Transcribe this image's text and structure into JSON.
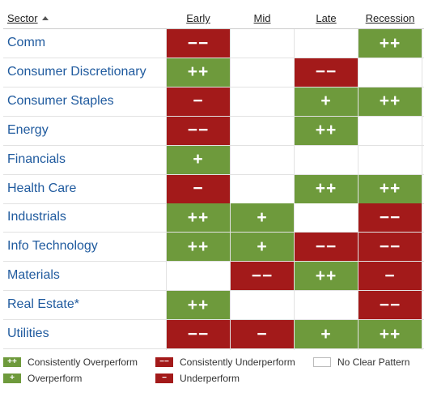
{
  "chart_data": {
    "type": "table",
    "columns": {
      "sector": "Sector",
      "phases": [
        "Early",
        "Mid",
        "Late",
        "Recession"
      ]
    },
    "rows": [
      {
        "sector": "Comm",
        "cells": [
          {
            "code": "mm",
            "symbol": "−−"
          },
          {
            "code": "n",
            "symbol": ""
          },
          {
            "code": "n",
            "symbol": ""
          },
          {
            "code": "pp",
            "symbol": "++"
          }
        ]
      },
      {
        "sector": "Consumer Discretionary",
        "cells": [
          {
            "code": "pp",
            "symbol": "++"
          },
          {
            "code": "n",
            "symbol": ""
          },
          {
            "code": "mm",
            "symbol": "−−"
          },
          {
            "code": "n",
            "symbol": ""
          }
        ]
      },
      {
        "sector": "Consumer Staples",
        "cells": [
          {
            "code": "m",
            "symbol": "−"
          },
          {
            "code": "n",
            "symbol": ""
          },
          {
            "code": "p",
            "symbol": "+"
          },
          {
            "code": "pp",
            "symbol": "++"
          }
        ]
      },
      {
        "sector": "Energy",
        "cells": [
          {
            "code": "mm",
            "symbol": "−−"
          },
          {
            "code": "n",
            "symbol": ""
          },
          {
            "code": "pp",
            "symbol": "++"
          },
          {
            "code": "n",
            "symbol": ""
          }
        ]
      },
      {
        "sector": "Financials",
        "cells": [
          {
            "code": "p",
            "symbol": "+"
          },
          {
            "code": "n",
            "symbol": ""
          },
          {
            "code": "n",
            "symbol": ""
          },
          {
            "code": "n",
            "symbol": ""
          }
        ]
      },
      {
        "sector": "Health Care",
        "cells": [
          {
            "code": "m",
            "symbol": "−"
          },
          {
            "code": "n",
            "symbol": ""
          },
          {
            "code": "pp",
            "symbol": "++"
          },
          {
            "code": "pp",
            "symbol": "++"
          }
        ]
      },
      {
        "sector": "Industrials",
        "cells": [
          {
            "code": "pp",
            "symbol": "++"
          },
          {
            "code": "p",
            "symbol": "+"
          },
          {
            "code": "n",
            "symbol": ""
          },
          {
            "code": "mm",
            "symbol": "−−"
          }
        ]
      },
      {
        "sector": "Info Technology",
        "cells": [
          {
            "code": "pp",
            "symbol": "++"
          },
          {
            "code": "p",
            "symbol": "+"
          },
          {
            "code": "mm",
            "symbol": "−−"
          },
          {
            "code": "mm",
            "symbol": "−−"
          }
        ]
      },
      {
        "sector": "Materials",
        "cells": [
          {
            "code": "n",
            "symbol": ""
          },
          {
            "code": "mm",
            "symbol": "−−"
          },
          {
            "code": "pp",
            "symbol": "++"
          },
          {
            "code": "m",
            "symbol": "−"
          }
        ]
      },
      {
        "sector": "Real Estate*",
        "cells": [
          {
            "code": "pp",
            "symbol": "++"
          },
          {
            "code": "n",
            "symbol": ""
          },
          {
            "code": "n",
            "symbol": ""
          },
          {
            "code": "mm",
            "symbol": "−−"
          }
        ]
      },
      {
        "sector": "Utilities",
        "cells": [
          {
            "code": "mm",
            "symbol": "−−"
          },
          {
            "code": "m",
            "symbol": "−"
          },
          {
            "code": "p",
            "symbol": "+"
          },
          {
            "code": "pp",
            "symbol": "++"
          }
        ]
      }
    ],
    "legend": [
      {
        "code": "pp",
        "symbol": "++",
        "label": "Consistently Overperform"
      },
      {
        "code": "mm",
        "symbol": "−−",
        "label": "Consistently Underperform"
      },
      {
        "code": "n",
        "symbol": "",
        "label": "No Clear Pattern"
      },
      {
        "code": "p",
        "symbol": "+",
        "label": "Overperform"
      },
      {
        "code": "m",
        "symbol": "−",
        "label": "Underperform"
      }
    ],
    "colors": {
      "positive": "#6e9a3c",
      "negative": "#a31a1a",
      "sector_text": "#1f5a9e"
    },
    "sort": {
      "column": "Sector",
      "direction": "ascending",
      "icon": "sort-ascending-icon"
    }
  }
}
